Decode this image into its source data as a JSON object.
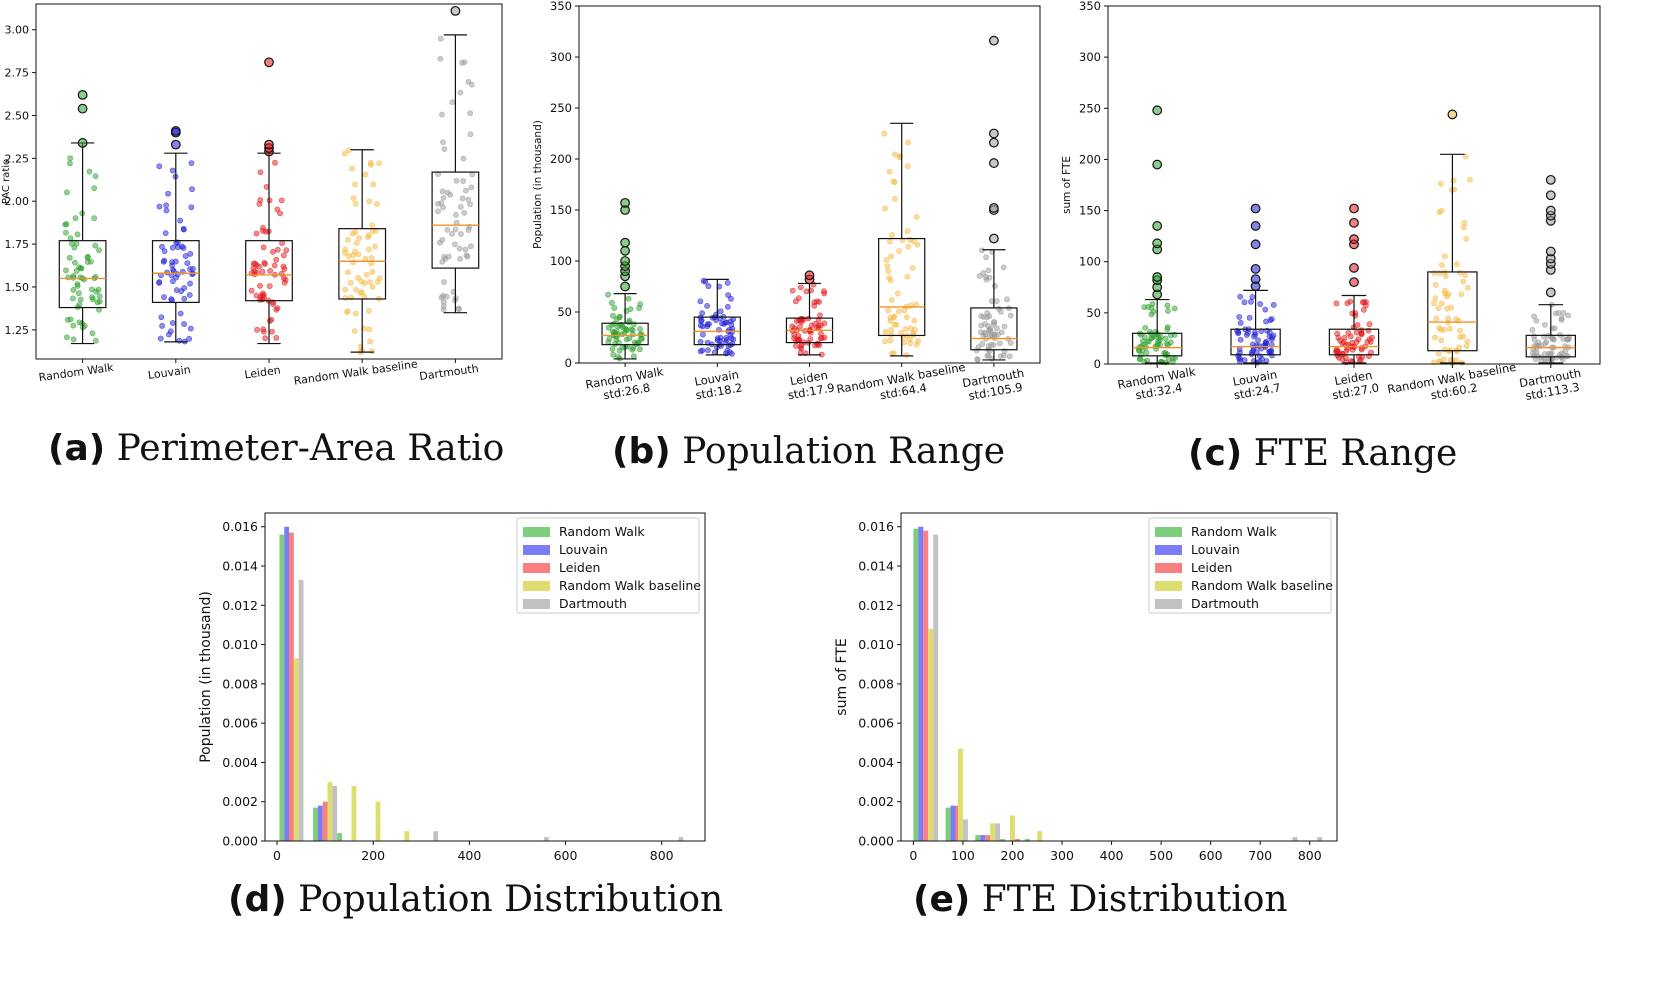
{
  "colors": {
    "Random Walk": "#2ca02c",
    "Louvain": "#1f1fd6",
    "Leiden": "#e31a1c",
    "Random Walk baseline": "#f5b942",
    "Dartmouth": "#9a9a9a",
    "median": "#f0932b"
  },
  "hist_colors": {
    "Random Walk": "#7ccd7c",
    "Louvain": "#7b7bf5",
    "Leiden": "#f88080",
    "Random Walk baseline": "#dede70",
    "Dartmouth": "#c2c2c2"
  },
  "captions": {
    "a": {
      "label": "(a)",
      "text": "Perimeter-Area Ratio"
    },
    "b": {
      "label": "(b)",
      "text": "Population Range"
    },
    "c": {
      "label": "(c)",
      "text": "FTE Range"
    },
    "d": {
      "label": "(d)",
      "text": "Population Distribution"
    },
    "e": {
      "label": "(e)",
      "text": "FTE Distribution"
    }
  },
  "chart_data": [
    {
      "id": "a",
      "type": "box",
      "ylabel": "PAC ratio",
      "ylim": [
        1.08,
        3.15
      ],
      "yticks": [
        1.25,
        1.5,
        1.75,
        2.0,
        2.25,
        2.5,
        2.75,
        3.0
      ],
      "ytick_labels": [
        "1.25",
        "1.50",
        "1.75",
        "2.00",
        "2.25",
        "2.50",
        "2.75",
        "3.00"
      ],
      "categories": [
        "Random Walk",
        "Louvain",
        "Leiden",
        "Random Walk baseline",
        "Dartmouth"
      ],
      "boxes": [
        {
          "whisker_low": 1.17,
          "q1": 1.38,
          "median": 1.55,
          "q3": 1.77,
          "whisker_high": 2.34,
          "outliers": [
            2.34,
            2.54,
            2.62
          ]
        },
        {
          "whisker_low": 1.18,
          "q1": 1.41,
          "median": 1.58,
          "q3": 1.77,
          "whisker_high": 2.28,
          "outliers": [
            2.33,
            2.4,
            2.41
          ]
        },
        {
          "whisker_low": 1.17,
          "q1": 1.42,
          "median": 1.57,
          "q3": 1.77,
          "whisker_high": 2.28,
          "outliers": [
            2.29,
            2.31,
            2.33,
            2.81
          ]
        },
        {
          "whisker_low": 1.12,
          "q1": 1.43,
          "median": 1.65,
          "q3": 1.84,
          "whisker_high": 2.3,
          "outliers": []
        },
        {
          "whisker_low": 1.35,
          "q1": 1.61,
          "median": 1.86,
          "q3": 2.17,
          "whisker_high": 2.97,
          "outliers": [
            3.11
          ]
        }
      ]
    },
    {
      "id": "b",
      "type": "box",
      "ylabel": "Population (in thousand)",
      "ylim": [
        0,
        350
      ],
      "yticks": [
        0,
        50,
        100,
        150,
        200,
        250,
        300,
        350
      ],
      "ytick_labels": [
        "0",
        "50",
        "100",
        "150",
        "200",
        "250",
        "300",
        "350"
      ],
      "categories": [
        "Random Walk",
        "Louvain",
        "Leiden",
        "Random Walk baseline",
        "Dartmouth"
      ],
      "category_sublabels": [
        "std:26.8",
        "std:18.2",
        "std:17.9",
        "std:64.4",
        "std:105.9"
      ],
      "boxes": [
        {
          "whisker_low": 4,
          "q1": 18,
          "median": 27,
          "q3": 39,
          "whisker_high": 68,
          "outliers": [
            75,
            85,
            90,
            95,
            100,
            110,
            118,
            150,
            157
          ]
        },
        {
          "whisker_low": 8,
          "q1": 18,
          "median": 31,
          "q3": 45,
          "whisker_high": 82,
          "outliers": []
        },
        {
          "whisker_low": 8,
          "q1": 20,
          "median": 32,
          "q3": 44,
          "whisker_high": 78,
          "outliers": [
            82,
            86
          ]
        },
        {
          "whisker_low": 7,
          "q1": 27,
          "median": 55,
          "q3": 122,
          "whisker_high": 235,
          "outliers": []
        },
        {
          "whisker_low": 3,
          "q1": 13,
          "median": 24,
          "q3": 54,
          "whisker_high": 111,
          "outliers": [
            122,
            150,
            152,
            196,
            216,
            225,
            316
          ]
        }
      ]
    },
    {
      "id": "c",
      "type": "box",
      "ylabel": "sum of FTE",
      "ylim": [
        0,
        350
      ],
      "yticks": [
        0,
        50,
        100,
        150,
        200,
        250,
        300,
        350
      ],
      "ytick_labels": [
        "0",
        "50",
        "100",
        "150",
        "200",
        "250",
        "300",
        "350"
      ],
      "categories": [
        "Random Walk",
        "Louvain",
        "Leiden",
        "Random Walk baseline",
        "Dartmouth"
      ],
      "category_sublabels": [
        "std:32.4",
        "std:24.7",
        "std:27.0",
        "std:60.2",
        "std:113.3"
      ],
      "boxes": [
        {
          "whisker_low": 1,
          "q1": 8,
          "median": 16,
          "q3": 30,
          "whisker_high": 63,
          "outliers": [
            68,
            75,
            82,
            85,
            112,
            118,
            135,
            195,
            248
          ]
        },
        {
          "whisker_low": 1,
          "q1": 9,
          "median": 17,
          "q3": 34,
          "whisker_high": 72,
          "outliers": [
            76,
            83,
            93,
            117,
            135,
            152
          ]
        },
        {
          "whisker_low": 1,
          "q1": 9,
          "median": 17,
          "q3": 34,
          "whisker_high": 67,
          "outliers": [
            80,
            94,
            117,
            122,
            138,
            152
          ]
        },
        {
          "whisker_low": 1,
          "q1": 13,
          "median": 41,
          "q3": 90,
          "whisker_high": 205,
          "outliers": [
            244
          ]
        },
        {
          "whisker_low": 1,
          "q1": 7,
          "median": 16,
          "q3": 28,
          "whisker_high": 58,
          "outliers": [
            70,
            92,
            98,
            103,
            110,
            140,
            145,
            150,
            165,
            180
          ]
        }
      ]
    },
    {
      "id": "d",
      "type": "bar",
      "ylabel": "Population (in thousand)",
      "xlim": [
        -25,
        890
      ],
      "ylim": [
        0,
        0.0167
      ],
      "xticks": [
        0,
        200,
        400,
        600,
        800
      ],
      "xtick_labels": [
        "0",
        "200",
        "400",
        "600",
        "800"
      ],
      "yticks": [
        0,
        0.002,
        0.004,
        0.006,
        0.008,
        0.01,
        0.012,
        0.014,
        0.016
      ],
      "ytick_labels": [
        "0.000",
        "0.002",
        "0.004",
        "0.006",
        "0.008",
        "0.010",
        "0.012",
        "0.014",
        "0.016"
      ],
      "legend": [
        "Random Walk",
        "Louvain",
        "Leiden",
        "Random Walk baseline",
        "Dartmouth"
      ],
      "legend_position": "top-right",
      "bin_width": 10,
      "series": [
        {
          "name": "Random Walk",
          "x": [
            10,
            80,
            130
          ],
          "values": [
            0.0156,
            0.0017,
            0.0004
          ]
        },
        {
          "name": "Louvain",
          "x": [
            20,
            90
          ],
          "values": [
            0.016,
            0.0018
          ]
        },
        {
          "name": "Leiden",
          "x": [
            30,
            100
          ],
          "values": [
            0.0157,
            0.002
          ]
        },
        {
          "name": "Random Walk baseline",
          "x": [
            40,
            110,
            160,
            210,
            270
          ],
          "values": [
            0.0093,
            0.003,
            0.0028,
            0.002,
            0.0005
          ]
        },
        {
          "name": "Dartmouth",
          "x": [
            50,
            120,
            330,
            560,
            840
          ],
          "values": [
            0.0133,
            0.0028,
            0.0005,
            0.0002,
            0.0002
          ]
        }
      ]
    },
    {
      "id": "e",
      "type": "bar",
      "ylabel": "sum of FTE",
      "xlim": [
        -25,
        855
      ],
      "ylim": [
        0,
        0.0167
      ],
      "xticks": [
        0,
        100,
        200,
        300,
        400,
        500,
        600,
        700,
        800
      ],
      "xtick_labels": [
        "0",
        "100",
        "200",
        "300",
        "400",
        "500",
        "600",
        "700",
        "800"
      ],
      "yticks": [
        0,
        0.002,
        0.004,
        0.006,
        0.008,
        0.01,
        0.012,
        0.014,
        0.016
      ],
      "ytick_labels": [
        "0.000",
        "0.002",
        "0.004",
        "0.006",
        "0.008",
        "0.010",
        "0.012",
        "0.014",
        "0.016"
      ],
      "legend": [
        "Random Walk",
        "Louvain",
        "Leiden",
        "Random Walk baseline",
        "Dartmouth"
      ],
      "legend_position": "top-right",
      "bin_width": 10,
      "series": [
        {
          "name": "Random Walk",
          "x": [
            5,
            70,
            130,
            180,
            230
          ],
          "values": [
            0.0159,
            0.0017,
            0.0003,
            0.0001,
            0.0001
          ]
        },
        {
          "name": "Louvain",
          "x": [
            15,
            80,
            140
          ],
          "values": [
            0.016,
            0.0018,
            0.0003
          ]
        },
        {
          "name": "Leiden",
          "x": [
            25,
            90,
            150,
            210
          ],
          "values": [
            0.0158,
            0.0018,
            0.0003,
            0.0001
          ]
        },
        {
          "name": "Random Walk baseline",
          "x": [
            35,
            95,
            160,
            200,
            255
          ],
          "values": [
            0.0108,
            0.0047,
            0.0009,
            0.0013,
            0.0005
          ]
        },
        {
          "name": "Dartmouth",
          "x": [
            45,
            105,
            170,
            770,
            820
          ],
          "values": [
            0.0156,
            0.0011,
            0.0009,
            0.0002,
            0.0002
          ]
        }
      ]
    }
  ]
}
